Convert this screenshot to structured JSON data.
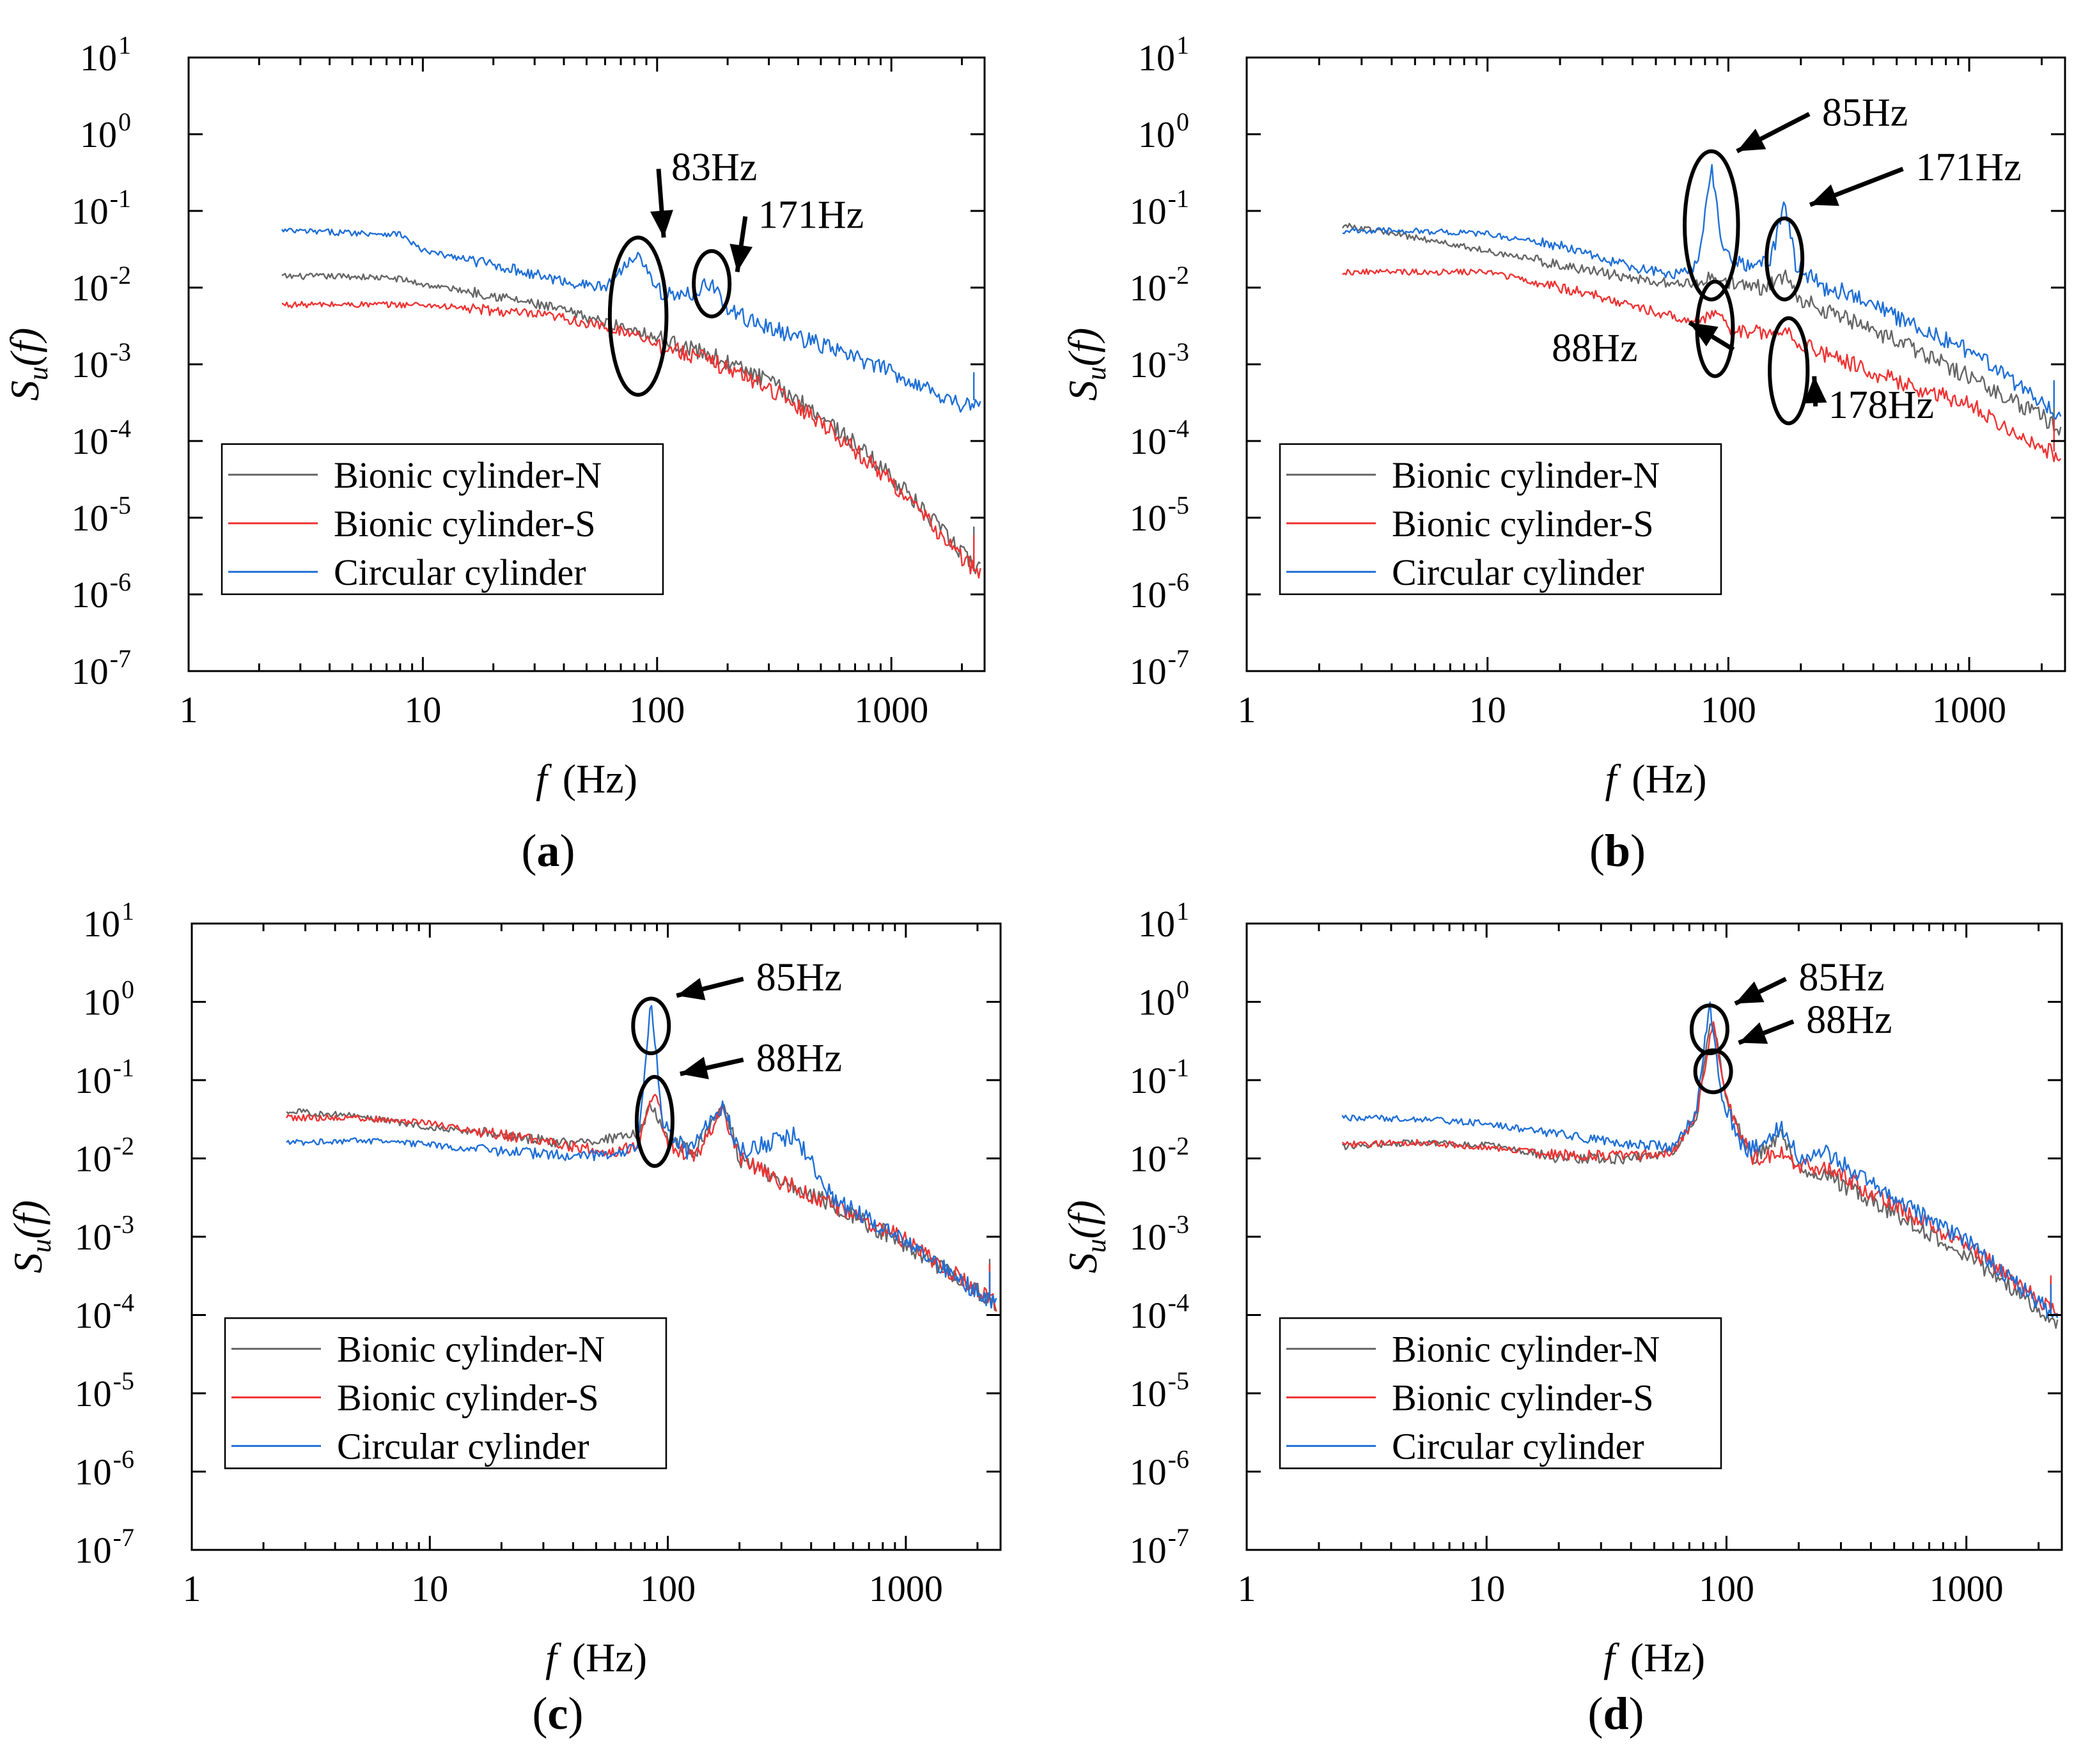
{
  "chart_data": [
    {
      "type": "line",
      "panel_label": "(a)",
      "panel_letter": "a",
      "xlabel": "f",
      "xlabel_unit": "(Hz)",
      "ylabel": "S",
      "ylabel_sub": "u",
      "ylabel_arg": "(f)",
      "x_scale": "log",
      "y_scale": "log",
      "xlim": [
        1,
        2500
      ],
      "ylim": [
        1e-07,
        10
      ],
      "x_ticks": [
        "1",
        "10",
        "100",
        "1000"
      ],
      "y_tick_base": "10",
      "y_tick_exps": [
        "1",
        "0",
        "-1",
        "-2",
        "-3",
        "-4",
        "-5",
        "-6",
        "-7"
      ],
      "legend_position": "bottom-left",
      "colors": {
        "Bionic cylinder-N": "#666666",
        "Bionic cylinder-S": "#ee3333",
        "Circular cylinder": "#1f6fd6"
      },
      "series": [
        {
          "name": "Bionic cylinder-N",
          "x": [
            2.5,
            5,
            8,
            10,
            20,
            40,
            60,
            83,
            100,
            171,
            300,
            500,
            1000,
            2000,
            2400
          ],
          "y": [
            0.014,
            0.014,
            0.013,
            0.011,
            0.008,
            0.005,
            0.0035,
            0.0028,
            0.0022,
            0.0013,
            0.0006,
            0.00022,
            3.5e-05,
            3.5e-06,
            2e-06
          ]
        },
        {
          "name": "Bionic cylinder-S",
          "x": [
            2.5,
            5,
            8,
            10,
            20,
            40,
            60,
            83,
            100,
            171,
            300,
            500,
            1000,
            2000,
            2400
          ],
          "y": [
            0.006,
            0.006,
            0.006,
            0.006,
            0.005,
            0.004,
            0.003,
            0.0025,
            0.0018,
            0.0011,
            0.0005,
            0.00018,
            3e-05,
            3e-06,
            1.8e-06
          ]
        },
        {
          "name": "Circular cylinder",
          "x": [
            2.5,
            8,
            10,
            20,
            40,
            60,
            83,
            100,
            130,
            171,
            200,
            300,
            500,
            1000,
            2000,
            2400
          ],
          "y": [
            0.055,
            0.05,
            0.03,
            0.02,
            0.012,
            0.01,
            0.03,
            0.009,
            0.0075,
            0.012,
            0.005,
            0.003,
            0.0018,
            0.0008,
            0.0003,
            0.00028
          ]
        }
      ],
      "annotations": [
        {
          "text": "83Hz",
          "freq": 83,
          "ell_y": [
            0.0004,
            0.045
          ],
          "label_x": 115,
          "label_y": 0.25,
          "target_y": 0.045
        },
        {
          "text": "171Hz",
          "freq": 171,
          "ell_y": [
            0.0042,
            0.03
          ],
          "label_x": 270,
          "label_y": 0.06,
          "target_y": 0.016
        }
      ]
    },
    {
      "type": "line",
      "panel_label": "(b)",
      "panel_letter": "b",
      "xlabel": "f",
      "xlabel_unit": "(Hz)",
      "ylabel": "S",
      "ylabel_sub": "u",
      "ylabel_arg": "(f)",
      "x_scale": "log",
      "y_scale": "log",
      "xlim": [
        1,
        2500
      ],
      "ylim": [
        1e-07,
        10
      ],
      "x_ticks": [
        "1",
        "10",
        "100",
        "1000"
      ],
      "y_tick_base": "10",
      "y_tick_exps": [
        "1",
        "0",
        "-1",
        "-2",
        "-3",
        "-4",
        "-5",
        "-6",
        "-7"
      ],
      "legend_position": "bottom-left",
      "colors": {
        "Bionic cylinder-N": "#666666",
        "Bionic cylinder-S": "#ee3333",
        "Circular cylinder": "#1f6fd6"
      },
      "series": [
        {
          "name": "Bionic cylinder-N",
          "x": [
            2.5,
            5,
            10,
            20,
            40,
            60,
            80,
            85,
            100,
            140,
            171,
            200,
            300,
            500,
            1000,
            2400
          ],
          "y": [
            0.065,
            0.045,
            0.03,
            0.02,
            0.013,
            0.011,
            0.012,
            0.015,
            0.011,
            0.01,
            0.015,
            0.007,
            0.004,
            0.002,
            0.0007,
            0.00015
          ]
        },
        {
          "name": "Bionic cylinder-S",
          "x": [
            2.5,
            10,
            20,
            40,
            60,
            80,
            88,
            100,
            140,
            178,
            200,
            300,
            500,
            1000,
            2400
          ],
          "y": [
            0.016,
            0.016,
            0.01,
            0.006,
            0.004,
            0.004,
            0.005,
            0.003,
            0.0025,
            0.0028,
            0.0018,
            0.0011,
            0.0006,
            0.0003,
            6e-05
          ]
        },
        {
          "name": "Circular cylinder",
          "x": [
            2.5,
            5,
            10,
            20,
            40,
            60,
            75,
            85,
            95,
            120,
            150,
            171,
            190,
            250,
            350,
            500,
            1000,
            2400
          ],
          "y": [
            0.055,
            0.055,
            0.05,
            0.035,
            0.018,
            0.015,
            0.02,
            0.4,
            0.03,
            0.02,
            0.022,
            0.14,
            0.02,
            0.01,
            0.008,
            0.004,
            0.0015,
            0.00022
          ]
        }
      ],
      "annotations": [
        {
          "text": "85Hz",
          "freq": 85,
          "ell_y": [
            0.007,
            0.6
          ],
          "label_x": 245,
          "label_y": 1.3,
          "target_y": 0.6
        },
        {
          "text": "171Hz",
          "freq": 171,
          "ell_y": [
            0.007,
            0.08
          ],
          "label_x": 600,
          "label_y": 0.25,
          "target_y": 0.12
        },
        {
          "text": "88Hz",
          "freq": 88,
          "ell_y": [
            0.0007,
            0.012
          ],
          "label_x": 42,
          "label_y": 0.0011,
          "target_y": 0.0035
        },
        {
          "text": "178Hz",
          "freq": 178,
          "ell_y": [
            0.00017,
            0.004
          ],
          "label_x": 260,
          "label_y": 0.0002,
          "target_y": 0.0007
        }
      ]
    },
    {
      "type": "line",
      "panel_label": "(c)",
      "panel_letter": "c",
      "xlabel": "f",
      "xlabel_unit": "(Hz)",
      "ylabel": "S",
      "ylabel_sub": "u",
      "ylabel_arg": "(f)",
      "x_scale": "log",
      "y_scale": "log",
      "xlim": [
        1,
        2500
      ],
      "ylim": [
        1e-07,
        10
      ],
      "x_ticks": [
        "1",
        "10",
        "100",
        "1000"
      ],
      "y_tick_base": "10",
      "y_tick_exps": [
        "1",
        "0",
        "-1",
        "-2",
        "-3",
        "-4",
        "-5",
        "-6",
        "-7"
      ],
      "legend_position": "bottom-left",
      "colors": {
        "Bionic cylinder-N": "#666666",
        "Bionic cylinder-S": "#ee3333",
        "Circular cylinder": "#1f6fd6"
      },
      "series": [
        {
          "name": "Bionic cylinder-N",
          "x": [
            2.5,
            5,
            10,
            20,
            40,
            60,
            75,
            85,
            88,
            100,
            130,
            171,
            200,
            300,
            500,
            1000,
            2400
          ],
          "y": [
            0.04,
            0.035,
            0.025,
            0.02,
            0.015,
            0.018,
            0.02,
            0.05,
            0.04,
            0.02,
            0.012,
            0.05,
            0.01,
            0.005,
            0.0025,
            0.0008,
            0.00014
          ]
        },
        {
          "name": "Bionic cylinder-S",
          "x": [
            2.5,
            5,
            10,
            20,
            40,
            60,
            75,
            88,
            100,
            130,
            171,
            200,
            300,
            500,
            1000,
            2400
          ],
          "y": [
            0.033,
            0.033,
            0.028,
            0.02,
            0.014,
            0.012,
            0.015,
            0.08,
            0.015,
            0.01,
            0.045,
            0.01,
            0.005,
            0.0025,
            0.0009,
            0.00014
          ]
        },
        {
          "name": "Circular cylinder",
          "x": [
            2.5,
            5,
            10,
            20,
            40,
            60,
            75,
            85,
            95,
            120,
            171,
            200,
            340,
            500,
            1000,
            2400
          ],
          "y": [
            0.016,
            0.017,
            0.015,
            0.012,
            0.011,
            0.011,
            0.015,
            1.1,
            0.03,
            0.012,
            0.05,
            0.012,
            0.02,
            0.003,
            0.0009,
            0.00013
          ]
        }
      ],
      "annotations": [
        {
          "text": "85Hz",
          "freq": 85,
          "ell_y": [
            0.22,
            1.1
          ],
          "label_x": 235,
          "label_y": 1.4,
          "target_y": 1.2
        },
        {
          "text": "88Hz",
          "freq": 88,
          "ell_y": [
            0.008,
            0.11
          ],
          "label_x": 235,
          "label_y": 0.13,
          "target_y": 0.12
        }
      ]
    },
    {
      "type": "line",
      "panel_label": "(d)",
      "panel_letter": "d",
      "xlabel": "f",
      "xlabel_unit": "(Hz)",
      "ylabel": "S",
      "ylabel_sub": "u",
      "ylabel_arg": "(f)",
      "x_scale": "log",
      "y_scale": "log",
      "xlim": [
        1,
        2500
      ],
      "ylim": [
        1e-07,
        10
      ],
      "x_ticks": [
        "1",
        "10",
        "100",
        "1000"
      ],
      "y_tick_base": "10",
      "y_tick_exps": [
        "1",
        "0",
        "-1",
        "-2",
        "-3",
        "-4",
        "-5",
        "-6",
        "-7"
      ],
      "legend_position": "bottom-left",
      "colors": {
        "Bionic cylinder-N": "#666666",
        "Bionic cylinder-S": "#ee3333",
        "Circular cylinder": "#1f6fd6"
      },
      "series": [
        {
          "name": "Bionic cylinder-N",
          "x": [
            2.5,
            5,
            10,
            20,
            40,
            60,
            75,
            85,
            88,
            100,
            130,
            171,
            200,
            260,
            500,
            1000,
            2400
          ],
          "y": [
            0.014,
            0.016,
            0.015,
            0.01,
            0.01,
            0.012,
            0.03,
            0.5,
            0.6,
            0.05,
            0.01,
            0.02,
            0.007,
            0.006,
            0.002,
            0.0006,
            8e-05
          ]
        },
        {
          "name": "Bionic cylinder-S",
          "x": [
            2.5,
            5,
            10,
            20,
            40,
            60,
            75,
            88,
            100,
            130,
            171,
            200,
            260,
            500,
            1000,
            2400
          ],
          "y": [
            0.015,
            0.016,
            0.014,
            0.011,
            0.011,
            0.012,
            0.035,
            0.6,
            0.05,
            0.01,
            0.012,
            0.008,
            0.008,
            0.0025,
            0.0008,
            0.0001
          ]
        },
        {
          "name": "Circular cylinder",
          "x": [
            2.5,
            5,
            10,
            20,
            40,
            60,
            75,
            85,
            95,
            120,
            171,
            200,
            260,
            500,
            1000,
            2400
          ],
          "y": [
            0.033,
            0.032,
            0.028,
            0.02,
            0.015,
            0.014,
            0.04,
            1.0,
            0.06,
            0.012,
            0.025,
            0.01,
            0.012,
            0.003,
            0.0009,
            9e-05
          ]
        }
      ],
      "annotations": [
        {
          "text": "85Hz",
          "freq": 85,
          "ell_y": [
            0.22,
            0.9
          ],
          "label_x": 200,
          "label_y": 1.4,
          "target_y": 0.95
        },
        {
          "text": "88Hz",
          "freq": 88,
          "ell_y": [
            0.07,
            0.24
          ],
          "label_x": 215,
          "label_y": 0.4,
          "target_y": 0.3
        }
      ]
    }
  ]
}
